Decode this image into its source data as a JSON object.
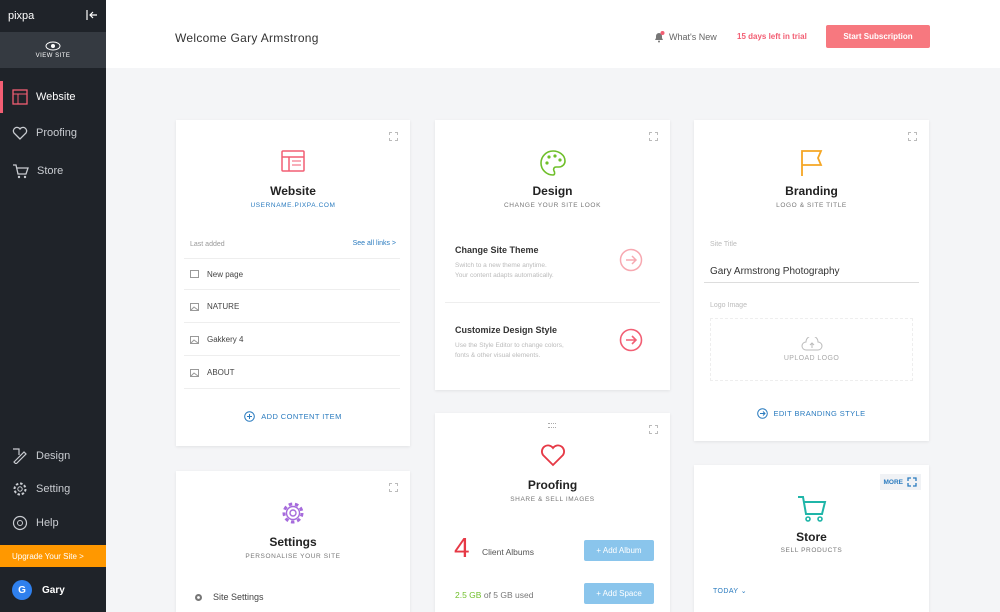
{
  "app": {
    "logo": "pixpa"
  },
  "sidebar": {
    "view_site": "VIEW SITE",
    "nav": [
      {
        "label": "Website",
        "icon": "website-icon"
      },
      {
        "label": "Proofing",
        "icon": "heart-icon"
      },
      {
        "label": "Store",
        "icon": "cart-icon"
      }
    ],
    "bottom_nav": [
      {
        "label": "Design",
        "icon": "design-icon"
      },
      {
        "label": "Setting",
        "icon": "gear-icon"
      },
      {
        "label": "Help",
        "icon": "help-icon"
      }
    ],
    "upgrade": "Upgrade Your Site >",
    "user": {
      "initial": "G",
      "name": "Gary"
    }
  },
  "header": {
    "welcome": "Welcome Gary Armstrong",
    "whats_new": "What's New",
    "trial": "15 days left in trial",
    "start_subscription": "Start Subscription"
  },
  "website_card": {
    "title": "Website",
    "subtitle": "USERNAME.PIXPA.COM",
    "last_added": "Last added",
    "see_all": "See all links >",
    "items": [
      "New page",
      "NATURE",
      "Gakkery 4",
      "ABOUT"
    ],
    "add_item": "ADD CONTENT ITEM"
  },
  "design_card": {
    "title": "Design",
    "subtitle": "CHANGE YOUR SITE LOOK",
    "options": [
      {
        "title": "Change Site Theme",
        "desc1": "Switch to a new theme anytime.",
        "desc2": "Your content adapts automatically."
      },
      {
        "title": "Customize Design Style",
        "desc1": "Use the Style Editor to change colors,",
        "desc2": "fonts & other visual elements."
      }
    ]
  },
  "branding_card": {
    "title": "Branding",
    "subtitle": "LOGO & SITE TITLE",
    "site_title_label": "Site Title",
    "site_title_value": "Gary Armstrong Photography",
    "logo_label": "Logo Image",
    "upload_logo": "UPLOAD LOGO",
    "edit": "EDIT BRANDING STYLE"
  },
  "settings_card": {
    "title": "Settings",
    "subtitle": "PERSONALISE YOUR SITE",
    "item": "Site Settings"
  },
  "proofing_card": {
    "title": "Proofing",
    "subtitle": "SHARE & SELL IMAGES",
    "albums_count": "4",
    "albums_label": "Client Albums",
    "add_album": "+ Add Album",
    "storage_used": "2.5 GB",
    "storage_rest": "of 5 GB used",
    "add_space": "+ Add Space"
  },
  "store_card": {
    "title": "Store",
    "subtitle": "SELL PRODUCTS",
    "more": "MORE",
    "period": "TODAY"
  },
  "colors": {
    "accent": "#f25e73",
    "sidebar": "#1f2329",
    "orange": "#ff9800",
    "link": "#2a7bbf"
  }
}
